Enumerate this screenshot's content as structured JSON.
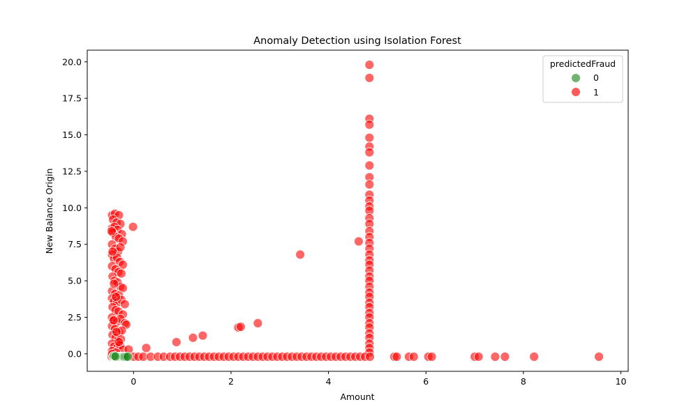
{
  "chart_data": {
    "type": "scatter",
    "title": "Anomaly Detection using Isolation Forest",
    "xlabel": "Amount",
    "ylabel": "New Balance Origin",
    "xlim": [
      -0.95,
      10.15
    ],
    "ylim": [
      -1.2,
      20.8
    ],
    "xticks": [
      0,
      2,
      4,
      6,
      8,
      10
    ],
    "yticks": [
      0.0,
      2.5,
      5.0,
      7.5,
      10.0,
      12.5,
      15.0,
      17.5,
      20.0
    ],
    "grid": false,
    "legend": {
      "title": "predictedFraud",
      "position": "top-right",
      "entries": [
        {
          "label": "0",
          "color": "#228b22"
        },
        {
          "label": "1",
          "color": "#ff0000"
        }
      ]
    },
    "series": [
      {
        "name": "0",
        "color": "#228b22",
        "points": [
          [
            -0.42,
            -0.2
          ],
          [
            -0.4,
            -0.2
          ],
          [
            -0.38,
            -0.2
          ],
          [
            -0.36,
            -0.2
          ],
          [
            -0.33,
            -0.2
          ],
          [
            -0.3,
            -0.2
          ],
          [
            -0.27,
            -0.2
          ],
          [
            -0.24,
            -0.2
          ],
          [
            -0.22,
            -0.2
          ],
          [
            -0.2,
            -0.2
          ],
          [
            -0.18,
            -0.2
          ],
          [
            -0.15,
            -0.2
          ],
          [
            -0.12,
            -0.2
          ],
          [
            -0.4,
            -0.15
          ],
          [
            -0.37,
            -0.18
          ]
        ]
      },
      {
        "name": "1",
        "color": "#ff0000",
        "points": [
          [
            -0.44,
            9.5
          ],
          [
            -0.38,
            9.6
          ],
          [
            -0.3,
            9.5
          ],
          [
            -0.42,
            9.2
          ],
          [
            -0.35,
            9.0
          ],
          [
            -0.27,
            8.9
          ],
          [
            -0.44,
            8.6
          ],
          [
            -0.39,
            8.7
          ],
          [
            -0.33,
            8.5
          ],
          [
            -0.24,
            8.2
          ],
          [
            -0.43,
            8.3
          ],
          [
            -0.36,
            8.0
          ],
          [
            -0.3,
            7.9
          ],
          [
            -0.22,
            7.7
          ],
          [
            -0.44,
            7.5
          ],
          [
            -0.38,
            7.2
          ],
          [
            -0.32,
            7.0
          ],
          [
            -0.27,
            7.3
          ],
          [
            -0.44,
            6.8
          ],
          [
            -0.4,
            6.5
          ],
          [
            -0.34,
            6.6
          ],
          [
            -0.28,
            6.3
          ],
          [
            -0.22,
            6.1
          ],
          [
            -0.44,
            6.0
          ],
          [
            -0.37,
            5.8
          ],
          [
            -0.31,
            5.6
          ],
          [
            -0.25,
            5.5
          ],
          [
            -0.43,
            5.3
          ],
          [
            -0.39,
            5.0
          ],
          [
            -0.33,
            4.9
          ],
          [
            -0.27,
            4.6
          ],
          [
            -0.22,
            4.5
          ],
          [
            -0.44,
            4.3
          ],
          [
            -0.38,
            4.1
          ],
          [
            -0.3,
            4.0
          ],
          [
            -0.44,
            3.8
          ],
          [
            -0.4,
            3.6
          ],
          [
            -0.34,
            3.5
          ],
          [
            -0.25,
            3.7
          ],
          [
            -0.18,
            3.4
          ],
          [
            -0.43,
            3.2
          ],
          [
            -0.37,
            3.0
          ],
          [
            -0.31,
            2.9
          ],
          [
            -0.22,
            2.7
          ],
          [
            -0.44,
            2.5
          ],
          [
            -0.4,
            2.3
          ],
          [
            -0.34,
            2.2
          ],
          [
            -0.27,
            2.4
          ],
          [
            -0.18,
            2.1
          ],
          [
            -0.15,
            2.0
          ],
          [
            -0.44,
            1.9
          ],
          [
            -0.38,
            1.7
          ],
          [
            -0.3,
            1.5
          ],
          [
            -0.24,
            1.6
          ],
          [
            -0.43,
            1.3
          ],
          [
            -0.37,
            1.1
          ],
          [
            -0.32,
            0.9
          ],
          [
            -0.26,
            1.0
          ],
          [
            -0.44,
            0.7
          ],
          [
            -0.4,
            0.5
          ],
          [
            -0.34,
            0.4
          ],
          [
            -0.28,
            0.6
          ],
          [
            -0.22,
            0.3
          ],
          [
            -0.44,
            0.2
          ],
          [
            -0.36,
            0.1
          ],
          [
            -0.45,
            8.4
          ],
          [
            -0.43,
            7.0
          ],
          [
            -0.4,
            4.8
          ],
          [
            -0.36,
            3.9
          ],
          [
            -0.41,
            2.3
          ],
          [
            -0.35,
            1.5
          ],
          [
            -0.3,
            0.8
          ],
          [
            -0.01,
            8.7
          ],
          [
            0.26,
            0.4
          ],
          [
            -0.1,
            0.3
          ],
          [
            0.88,
            0.8
          ],
          [
            1.22,
            1.1
          ],
          [
            1.42,
            1.25
          ],
          [
            2.15,
            1.8
          ],
          [
            2.2,
            1.85
          ],
          [
            2.55,
            2.1
          ],
          [
            3.42,
            6.8
          ],
          [
            4.62,
            7.7
          ],
          [
            4.84,
            19.8
          ],
          [
            4.84,
            18.9
          ],
          [
            4.84,
            16.1
          ],
          [
            4.84,
            15.7
          ],
          [
            4.84,
            14.8
          ],
          [
            4.84,
            14.2
          ],
          [
            4.84,
            13.8
          ],
          [
            4.84,
            12.9
          ],
          [
            4.84,
            12.1
          ],
          [
            4.84,
            11.6
          ],
          [
            4.84,
            10.9
          ],
          [
            4.84,
            10.5
          ],
          [
            4.84,
            10.1
          ],
          [
            4.84,
            9.8
          ],
          [
            4.84,
            9.3
          ],
          [
            4.84,
            8.9
          ],
          [
            4.84,
            8.4
          ],
          [
            4.84,
            8.0
          ],
          [
            4.84,
            7.6
          ],
          [
            4.84,
            7.2
          ],
          [
            4.84,
            6.8
          ],
          [
            4.84,
            6.4
          ],
          [
            4.84,
            6.1
          ],
          [
            4.84,
            5.7
          ],
          [
            4.84,
            5.3
          ],
          [
            4.84,
            5.0
          ],
          [
            4.84,
            4.6
          ],
          [
            4.84,
            4.2
          ],
          [
            4.84,
            3.9
          ],
          [
            4.84,
            3.5
          ],
          [
            4.84,
            3.2
          ],
          [
            4.84,
            2.8
          ],
          [
            4.84,
            2.5
          ],
          [
            4.84,
            2.1
          ],
          [
            4.84,
            1.8
          ],
          [
            4.84,
            1.4
          ],
          [
            4.84,
            1.1
          ],
          [
            4.84,
            0.7
          ],
          [
            4.84,
            0.4
          ],
          [
            4.84,
            0.1
          ],
          [
            0.0,
            -0.2
          ],
          [
            0.1,
            -0.2
          ],
          [
            0.2,
            -0.2
          ],
          [
            0.35,
            -0.2
          ],
          [
            0.5,
            -0.2
          ],
          [
            0.62,
            -0.2
          ],
          [
            0.75,
            -0.2
          ],
          [
            0.85,
            -0.2
          ],
          [
            0.95,
            -0.2
          ],
          [
            1.05,
            -0.2
          ],
          [
            1.15,
            -0.2
          ],
          [
            1.25,
            -0.2
          ],
          [
            1.35,
            -0.2
          ],
          [
            1.45,
            -0.2
          ],
          [
            1.55,
            -0.2
          ],
          [
            1.65,
            -0.2
          ],
          [
            1.75,
            -0.2
          ],
          [
            1.85,
            -0.2
          ],
          [
            1.95,
            -0.2
          ],
          [
            2.05,
            -0.2
          ],
          [
            2.15,
            -0.2
          ],
          [
            2.25,
            -0.2
          ],
          [
            2.35,
            -0.2
          ],
          [
            2.45,
            -0.2
          ],
          [
            2.55,
            -0.2
          ],
          [
            2.65,
            -0.2
          ],
          [
            2.75,
            -0.2
          ],
          [
            2.85,
            -0.2
          ],
          [
            2.95,
            -0.2
          ],
          [
            3.05,
            -0.2
          ],
          [
            3.15,
            -0.2
          ],
          [
            3.25,
            -0.2
          ],
          [
            3.35,
            -0.2
          ],
          [
            3.45,
            -0.2
          ],
          [
            3.55,
            -0.2
          ],
          [
            3.65,
            -0.2
          ],
          [
            3.75,
            -0.2
          ],
          [
            3.85,
            -0.2
          ],
          [
            3.95,
            -0.2
          ],
          [
            4.05,
            -0.2
          ],
          [
            4.15,
            -0.2
          ],
          [
            4.25,
            -0.2
          ],
          [
            4.35,
            -0.2
          ],
          [
            4.45,
            -0.2
          ],
          [
            4.55,
            -0.2
          ],
          [
            4.65,
            -0.2
          ],
          [
            4.75,
            -0.2
          ],
          [
            4.85,
            -0.2
          ],
          [
            5.35,
            -0.2
          ],
          [
            5.4,
            -0.2
          ],
          [
            5.65,
            -0.2
          ],
          [
            5.75,
            -0.2
          ],
          [
            6.05,
            -0.2
          ],
          [
            6.12,
            -0.2
          ],
          [
            7.0,
            -0.2
          ],
          [
            7.08,
            -0.2
          ],
          [
            7.42,
            -0.2
          ],
          [
            7.62,
            -0.2
          ],
          [
            8.22,
            -0.2
          ],
          [
            9.55,
            -0.2
          ],
          [
            -0.45,
            -0.2
          ],
          [
            -0.44,
            0.0
          ]
        ]
      }
    ]
  }
}
